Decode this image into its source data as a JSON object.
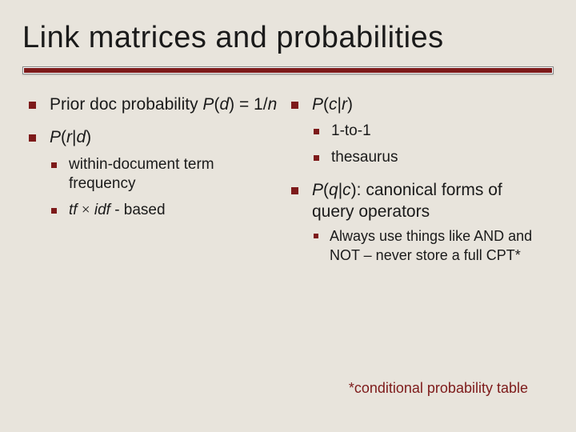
{
  "title": "Link matrices and probabilities",
  "colors": {
    "background": "#e8e4dc",
    "accent": "#7d1a1a",
    "text": "#1a1a1a",
    "rule_border": "#888888",
    "rule_bg": "#ffffff"
  },
  "typography": {
    "title_fontsize": 38,
    "lvl1_fontsize": 21,
    "lvl2_fontsize": 19,
    "lvl3_fontsize": 18,
    "footnote_fontsize": 18,
    "font_family": "Verdana"
  },
  "left": {
    "item1_a": "Prior doc probability ",
    "item1_b": "P",
    "item1_c": "(",
    "item1_d": "d",
    "item1_e": ") = 1/",
    "item1_f": "n",
    "item2_a": "P",
    "item2_b": "(",
    "item2_c": "r",
    "item2_d": "|",
    "item2_e": "d",
    "item2_f": ")",
    "sub1": "within-document term frequency",
    "sub2_a": "tf ",
    "sub2_b": "×",
    "sub2_c": " idf ",
    "sub2_d": "- based"
  },
  "right": {
    "item1_a": "P",
    "item1_b": "(",
    "item1_c": "c",
    "item1_d": "|",
    "item1_e": "r",
    "item1_f": ")",
    "sub1": "1-to-1",
    "sub2": "thesaurus",
    "item2_a": "P",
    "item2_b": "(",
    "item2_c": "q",
    "item2_d": "|",
    "item2_e": "c",
    "item2_f": ")",
    "item2_g": ": canonical forms of query operators",
    "sub3": "Always use things like AND and NOT – never store a full CPT*"
  },
  "footnote": "*conditional probability table"
}
